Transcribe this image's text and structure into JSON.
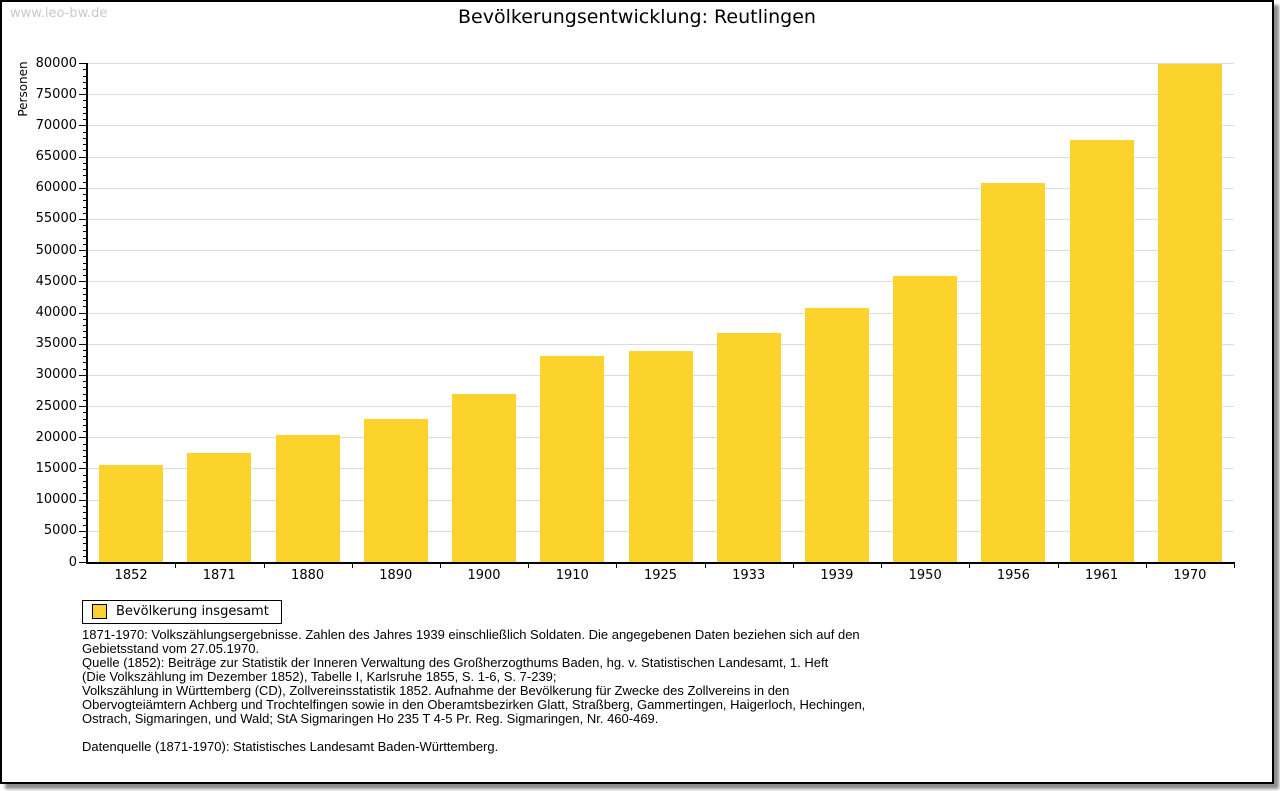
{
  "watermark": "www.leo-bw.de",
  "header": {
    "title": "Bevölkerungsentwicklung: Reutlingen"
  },
  "legend": {
    "label": "Bevölkerung insgesamt"
  },
  "colors": {
    "bar": "#fcd32d",
    "grid": "#dcdcdc",
    "axis": "#000000",
    "watermark": "#c9c9c9"
  },
  "chart_data": {
    "type": "bar",
    "title": "Bevölkerungsentwicklung: Reutlingen",
    "xlabel": "",
    "ylabel": "Personen",
    "categories": [
      "1852",
      "1871",
      "1880",
      "1890",
      "1900",
      "1910",
      "1925",
      "1933",
      "1939",
      "1950",
      "1956",
      "1961",
      "1970"
    ],
    "values": [
      15600,
      17500,
      20300,
      23000,
      27000,
      33000,
      33900,
      36700,
      40800,
      45900,
      60700,
      67700,
      79800
    ],
    "series_name": "Bevölkerung insgesamt",
    "ylim": [
      0,
      80000
    ],
    "y_major_step": 5000,
    "y_minor_step": 1000,
    "grid": true,
    "legend_position": "bottom-left",
    "bar_color": "#fcd32d"
  },
  "footnotes": {
    "lines": [
      "1871-1970: Volkszählungsergebnisse. Zahlen des Jahres 1939 einschließlich Soldaten. Die angegebenen Daten beziehen sich auf den",
      "Gebietsstand vom 27.05.1970.",
      "Quelle (1852): Beiträge zur Statistik der Inneren Verwaltung des Großherzogthums Baden, hg. v. Statistischen Landesamt, 1. Heft",
      "(Die Volkszählung im Dezember 1852), Tabelle I, Karlsruhe 1855, S. 1-6, S. 7-239;",
      "Volkszählung in Württemberg (CD), Zollvereinsstatistik 1852. Aufnahme der Bevölkerung für Zwecke des Zollvereins in den",
      "Obervogteiämtern Achberg und Trochtelfingen sowie in den Oberamtsbezirken Glatt, Straßberg, Gammertingen, Haigerloch, Hechingen,",
      "Ostrach, Sigmaringen, und Wald; StA Sigmaringen Ho 235 T 4-5 Pr. Reg. Sigmaringen, Nr. 460-469.",
      "",
      "Datenquelle (1871-1970): Statistisches Landesamt Baden-Württemberg."
    ]
  }
}
